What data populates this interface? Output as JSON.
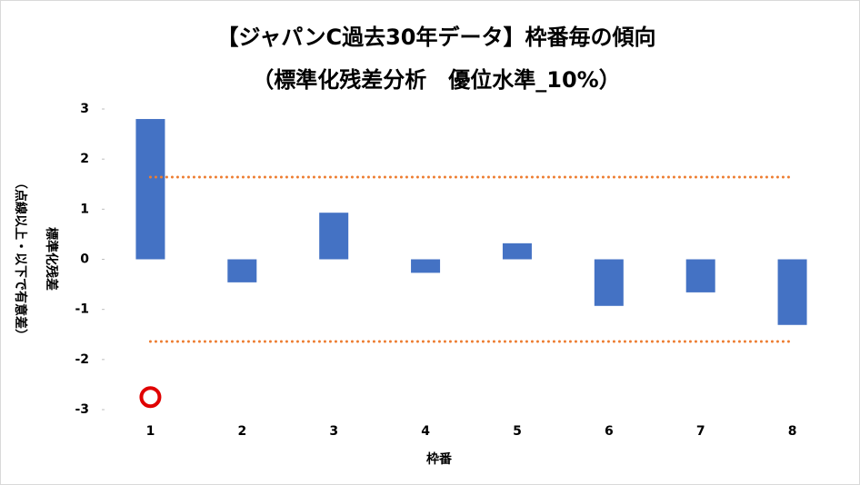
{
  "chart_data": {
    "type": "bar",
    "title": "【ジャパンC過去30年データ】枠番毎の傾向",
    "subtitle": "（標準化残差分析　優位水準_10%）",
    "x_label": "枠番",
    "y_label": "標準化残差",
    "y_label_note": "（点線以上・以下で有意差）",
    "categories": [
      "1",
      "2",
      "3",
      "4",
      "5",
      "6",
      "7",
      "8"
    ],
    "values": [
      2.8,
      -0.46,
      0.93,
      -0.27,
      0.32,
      -0.93,
      -0.66,
      -1.31
    ],
    "color": "#4472c4",
    "thresholds": [
      1.64,
      -1.64
    ],
    "threshold_color": "#ed7d31",
    "markers": [
      -2.75,
      null,
      null,
      null,
      null,
      null,
      null,
      null
    ],
    "marker_color": "#e00000",
    "ylim": [
      -3,
      3
    ],
    "yticks": [
      -3,
      -2,
      -1,
      0,
      1,
      2,
      3
    ],
    "grid": false
  }
}
